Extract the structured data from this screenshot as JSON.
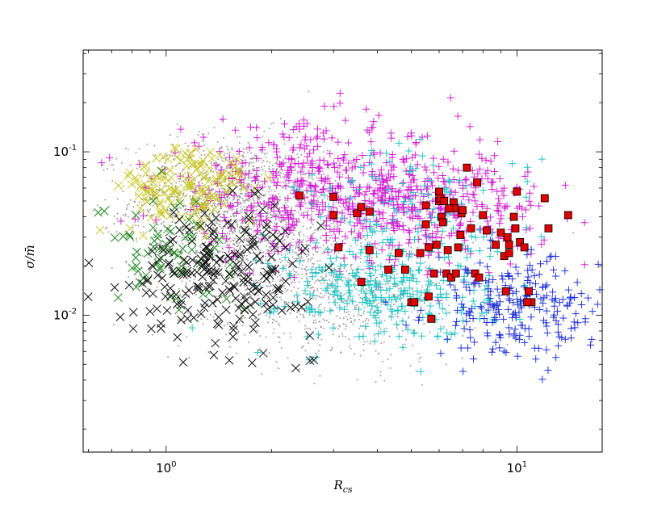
{
  "chart_data": {
    "type": "scatter",
    "title": "",
    "xlabel_main": "R",
    "xlabel_sub": "cs",
    "ylabel": "σ/m̄",
    "xscale": "log",
    "yscale": "log",
    "xlim": [
      0.58,
      17.5
    ],
    "ylim": [
      0.00145,
      0.42
    ],
    "grid": false,
    "legend": "none",
    "xticks": [
      {
        "value": 1,
        "base": "10",
        "exp": "0"
      },
      {
        "value": 10,
        "base": "10",
        "exp": "1"
      }
    ],
    "yticks": [
      {
        "value": 0.1,
        "base": "10",
        "exp": "-1"
      },
      {
        "value": 0.01,
        "base": "10",
        "exp": "-2"
      }
    ],
    "series": [
      {
        "marker": "dot",
        "color": "#9a9a9a",
        "size": 1.6,
        "count": 2600,
        "clusters": [
          {
            "n": 1300,
            "xmu": 1.5,
            "xsd": 0.32,
            "ymu": 0.05,
            "ysd": 0.45
          },
          {
            "n": 800,
            "xmu": 2.0,
            "xsd": 0.35,
            "ymu": 0.022,
            "ysd": 0.5
          },
          {
            "n": 500,
            "xmu": 3.4,
            "xsd": 0.4,
            "ymu": 0.012,
            "ysd": 0.45
          }
        ]
      },
      {
        "marker": "plus",
        "color": "#d41ed4",
        "size": 4.5,
        "count": 800,
        "clusters": [
          {
            "n": 450,
            "xmu": 2.6,
            "xsd": 0.5,
            "ymu": 0.06,
            "ysd": 0.45
          },
          {
            "n": 350,
            "xmu": 5.5,
            "xsd": 0.4,
            "ymu": 0.045,
            "ysd": 0.38
          }
        ]
      },
      {
        "marker": "plus",
        "color": "#22c4c4",
        "size": 4.5,
        "count": 420,
        "clusters": [
          {
            "n": 280,
            "xmu": 4.2,
            "xsd": 0.35,
            "ymu": 0.014,
            "ysd": 0.35
          },
          {
            "n": 140,
            "xmu": 5.2,
            "xsd": 0.4,
            "ymu": 0.04,
            "ysd": 0.5
          }
        ]
      },
      {
        "marker": "plus",
        "color": "#2233d8",
        "size": 4.5,
        "count": 240,
        "clusters": [
          {
            "n": 240,
            "xmu": 10.0,
            "xsd": 0.28,
            "ymu": 0.011,
            "ysd": 0.35
          }
        ]
      },
      {
        "marker": "cross",
        "color": "#c8c820",
        "size": 5,
        "count": 140,
        "clusters": [
          {
            "n": 140,
            "xmu": 1.15,
            "xsd": 0.22,
            "ymu": 0.06,
            "ysd": 0.3
          }
        ]
      },
      {
        "marker": "cross",
        "color": "#228822",
        "size": 5,
        "count": 70,
        "clusters": [
          {
            "n": 70,
            "xmu": 1.0,
            "xsd": 0.22,
            "ymu": 0.026,
            "ysd": 0.35
          }
        ]
      },
      {
        "marker": "cross",
        "color": "#111111",
        "size": 5,
        "count": 220,
        "clusters": [
          {
            "n": 220,
            "xmu": 1.45,
            "xsd": 0.3,
            "ymu": 0.018,
            "ysd": 0.45
          }
        ]
      },
      {
        "marker": "square",
        "color": "#e00000",
        "size": 4.5,
        "count": 64,
        "points": [
          [
            2.4,
            0.054
          ],
          [
            3.0,
            0.053
          ],
          [
            3.0,
            0.041
          ],
          [
            3.1,
            0.026
          ],
          [
            3.5,
            0.042
          ],
          [
            3.6,
            0.046
          ],
          [
            3.8,
            0.043
          ],
          [
            3.8,
            0.025
          ],
          [
            3.6,
            0.016
          ],
          [
            4.3,
            0.019
          ],
          [
            4.8,
            0.019
          ],
          [
            5.0,
            0.012
          ],
          [
            5.3,
            0.024
          ],
          [
            5.5,
            0.036
          ],
          [
            5.5,
            0.047
          ],
          [
            5.6,
            0.026
          ],
          [
            5.6,
            0.013
          ],
          [
            5.7,
            0.0095
          ],
          [
            5.8,
            0.018
          ],
          [
            5.9,
            0.027
          ],
          [
            6.0,
            0.05
          ],
          [
            6.0,
            0.057
          ],
          [
            6.05,
            0.052
          ],
          [
            6.1,
            0.04
          ],
          [
            6.15,
            0.037
          ],
          [
            6.2,
            0.05
          ],
          [
            6.3,
            0.018
          ],
          [
            6.35,
            0.025
          ],
          [
            6.5,
            0.017
          ],
          [
            6.6,
            0.049
          ],
          [
            6.65,
            0.045
          ],
          [
            6.7,
            0.018
          ],
          [
            6.8,
            0.026
          ],
          [
            6.9,
            0.031
          ],
          [
            6.95,
            0.042
          ],
          [
            7.0,
            0.044
          ],
          [
            7.2,
            0.08
          ],
          [
            7.4,
            0.034
          ],
          [
            7.6,
            0.018
          ],
          [
            7.7,
            0.065
          ],
          [
            7.8,
            0.017
          ],
          [
            8.0,
            0.041
          ],
          [
            8.7,
            0.027
          ],
          [
            9.0,
            0.032
          ],
          [
            9.2,
            0.023
          ],
          [
            9.3,
            0.014
          ],
          [
            9.4,
            0.03
          ],
          [
            9.5,
            0.027
          ],
          [
            9.5,
            0.024
          ],
          [
            9.8,
            0.04
          ],
          [
            9.9,
            0.034
          ],
          [
            10.0,
            0.057
          ],
          [
            10.2,
            0.028
          ],
          [
            10.5,
            0.026
          ],
          [
            10.8,
            0.014
          ],
          [
            11.0,
            0.012
          ],
          [
            12.0,
            0.052
          ],
          [
            12.3,
            0.034
          ],
          [
            14.0,
            0.041
          ],
          [
            5.1,
            0.012
          ],
          [
            4.6,
            0.024
          ],
          [
            8.2,
            0.033
          ],
          [
            10.7,
            0.012
          ],
          [
            6.4,
            0.045
          ]
        ]
      }
    ]
  }
}
